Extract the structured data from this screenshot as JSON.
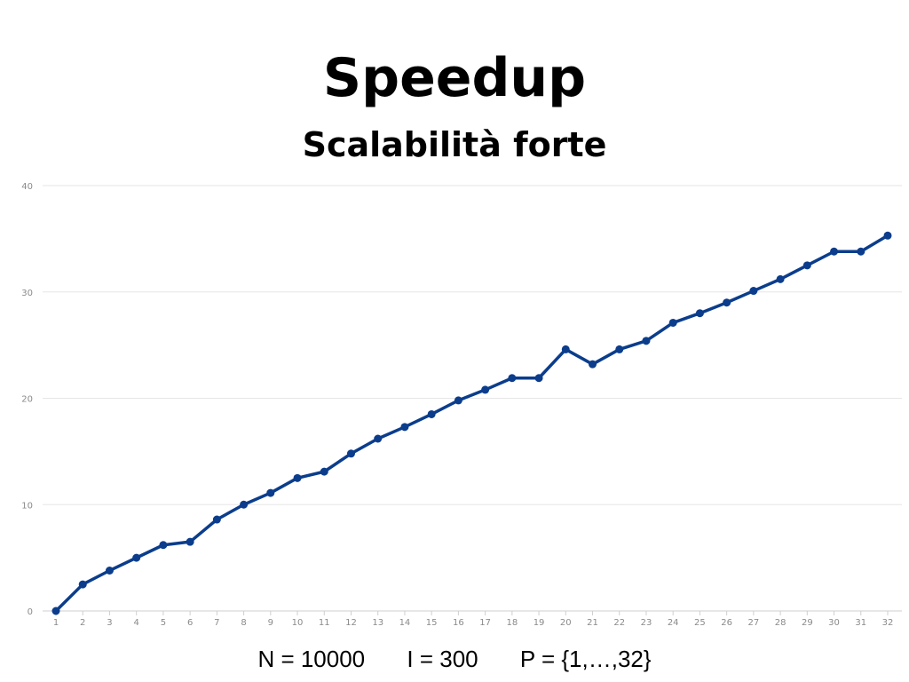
{
  "chart_data": {
    "type": "line",
    "title": "Speedup",
    "subtitle": "Scalabilità forte",
    "xlabel": "",
    "ylabel": "",
    "x": [
      1,
      2,
      3,
      4,
      5,
      6,
      7,
      8,
      9,
      10,
      11,
      12,
      13,
      14,
      15,
      16,
      17,
      18,
      19,
      20,
      21,
      22,
      23,
      24,
      25,
      26,
      27,
      28,
      29,
      30,
      31,
      32
    ],
    "series": [
      {
        "values": [
          0,
          2.5,
          3.8,
          5,
          6.2,
          6.5,
          8.6,
          10,
          11.1,
          12.5,
          13.1,
          14.8,
          16.2,
          17.3,
          18.5,
          19.8,
          20.8,
          21.9,
          21.9,
          24.6,
          23.2,
          24.6,
          25.4,
          27.1,
          28,
          29,
          30.1,
          31.2,
          32.5,
          33.8,
          33.8,
          35.3
        ]
      }
    ],
    "ylim": [
      0,
      40
    ],
    "yticks": [
      0,
      10,
      20,
      30,
      40
    ],
    "grid": true,
    "legend": "none",
    "line_color": "#0b3d8c",
    "grid_color": "#e6e6e6",
    "tick_color": "#8a8a8a"
  },
  "footer": {
    "n_param": "N = 10000",
    "i_param": "I = 300",
    "p_param": "P = {1,…,32}"
  }
}
